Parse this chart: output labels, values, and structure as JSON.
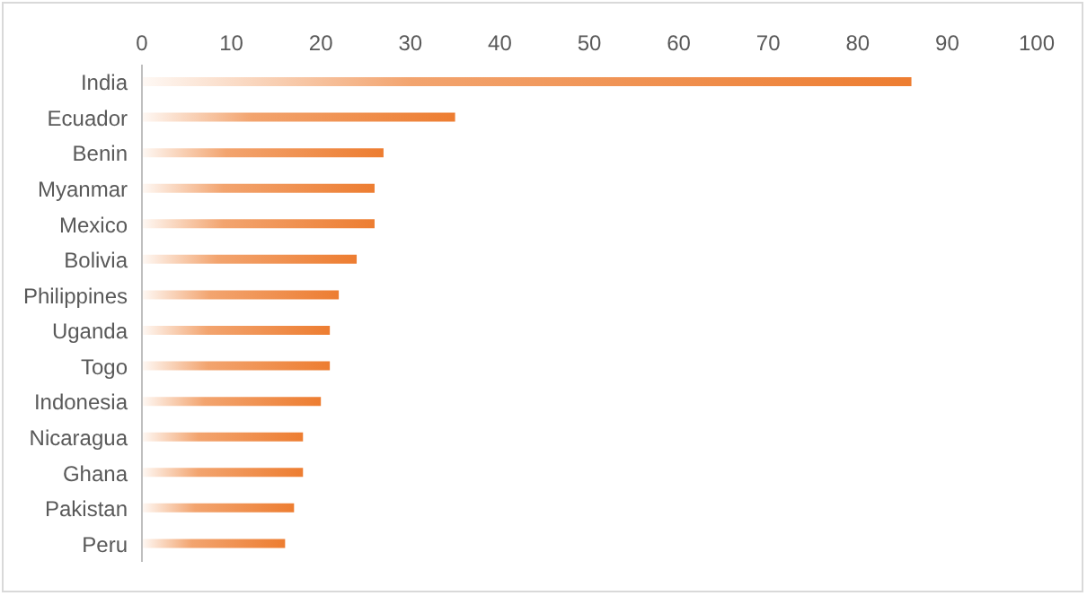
{
  "chart_data": {
    "type": "bar",
    "orientation": "horizontal",
    "categories": [
      "India",
      "Ecuador",
      "Benin",
      "Myanmar",
      "Mexico",
      "Bolivia",
      "Philippines",
      "Uganda",
      "Togo",
      "Indonesia",
      "Nicaragua",
      "Ghana",
      "Pakistan",
      "Peru"
    ],
    "values": [
      86,
      35,
      27,
      26,
      26,
      24,
      22,
      21,
      21,
      20,
      18,
      18,
      17,
      16
    ],
    "color": "#ed7d31",
    "xlim": [
      0,
      100
    ],
    "xticks": [
      0,
      10,
      20,
      30,
      40,
      50,
      60,
      70,
      80,
      90,
      100
    ],
    "grid": false,
    "legend": false
  }
}
